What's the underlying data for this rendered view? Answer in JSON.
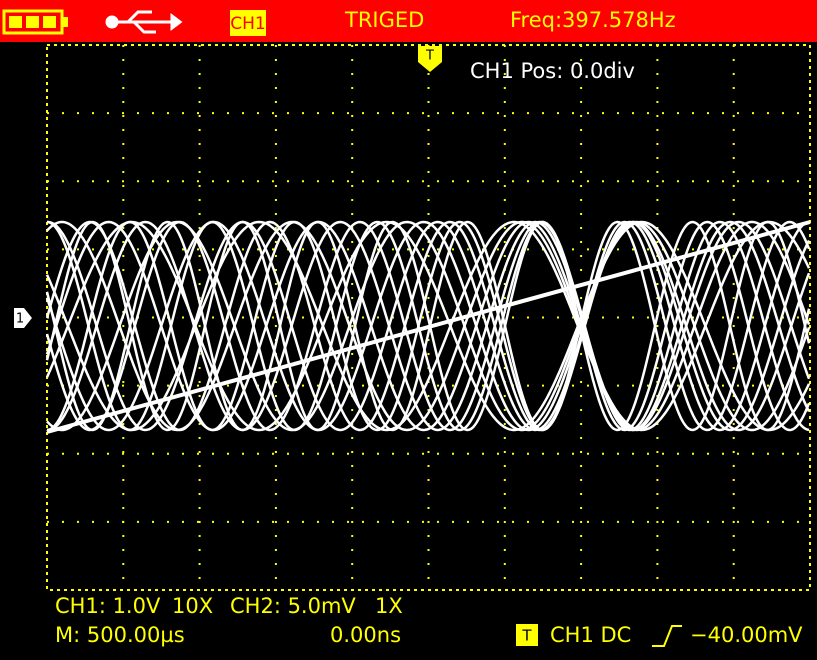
{
  "status_bar": {
    "channel": "CH1",
    "trigger_status": "TRIGED",
    "frequency": "Freq:397.578Hz"
  },
  "screen": {
    "trigger_marker": "T",
    "channel_marker": "1",
    "position": "CH1 Pos:  0.0div"
  },
  "footer": {
    "ch1": "CH1: 1.0V",
    "ch1_probe": "10X",
    "ch2": "CH2: 5.0mV",
    "ch2_probe": "1X",
    "timebase": "M: 500.00µs",
    "offset": "0.00ns",
    "trigger_icon": "T",
    "trigger_source": "CH1 DC",
    "trigger_level": "−40.00mV"
  }
}
